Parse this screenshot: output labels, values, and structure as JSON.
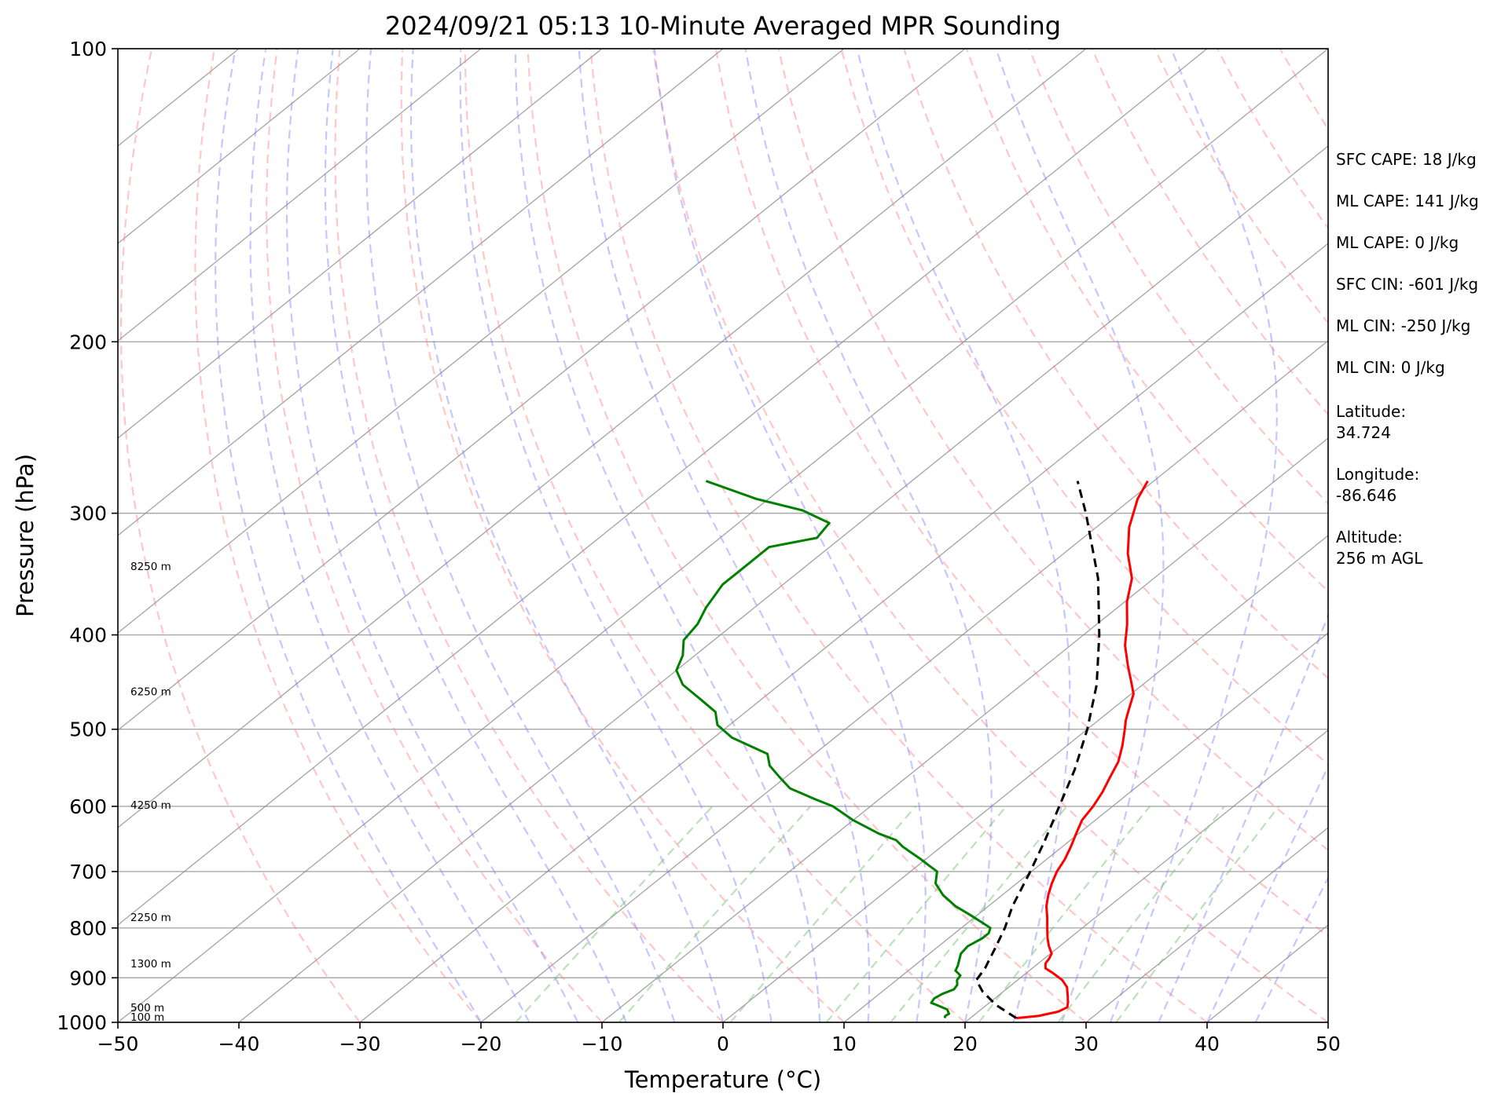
{
  "chart_data": {
    "type": "line",
    "chart_kind": "skew-T log-P sounding",
    "title": "2024/09/21 05:13 10-Minute Averaged MPR Sounding",
    "xlabel": "Temperature (°C)",
    "ylabel": "Pressure (hPa)",
    "xlim": [
      -50,
      50
    ],
    "ylim": [
      1000,
      100
    ],
    "y_scale": "log",
    "x_ticks": [
      -50,
      -40,
      -30,
      -20,
      -10,
      0,
      10,
      20,
      30,
      40,
      50
    ],
    "x_tick_labels": [
      "−50",
      "−40",
      "−30",
      "−20",
      "−10",
      "0",
      "10",
      "20",
      "30",
      "40",
      "50"
    ],
    "y_ticks": [
      1000,
      900,
      800,
      700,
      600,
      500,
      400,
      300,
      200,
      100
    ],
    "y_tick_labels": [
      "1000",
      "900",
      "800",
      "700",
      "600",
      "500",
      "400",
      "300",
      "200",
      "100"
    ],
    "grid": true,
    "skew_slope_per_decade": 100,
    "series": [
      {
        "role": "temperature",
        "color": "#ff0000",
        "style": "solid",
        "points": [
          [
            990,
            23.8
          ],
          [
            985,
            25.4
          ],
          [
            975,
            26.6
          ],
          [
            965,
            26.9
          ],
          [
            955,
            26.5
          ],
          [
            940,
            25.8
          ],
          [
            920,
            24.8
          ],
          [
            905,
            23.7
          ],
          [
            890,
            22.2
          ],
          [
            880,
            21.1
          ],
          [
            870,
            20.6
          ],
          [
            860,
            20.4
          ],
          [
            850,
            20.1
          ],
          [
            835,
            19.1
          ],
          [
            820,
            18.2
          ],
          [
            800,
            17.1
          ],
          [
            780,
            16.0
          ],
          [
            760,
            14.8
          ],
          [
            740,
            13.8
          ],
          [
            720,
            12.9
          ],
          [
            700,
            12.1
          ],
          [
            680,
            11.5
          ],
          [
            660,
            10.7
          ],
          [
            640,
            9.8
          ],
          [
            620,
            8.9
          ],
          [
            600,
            8.4
          ],
          [
            580,
            7.7
          ],
          [
            560,
            6.8
          ],
          [
            540,
            5.9
          ],
          [
            520,
            4.6
          ],
          [
            500,
            3.1
          ],
          [
            490,
            2.3
          ],
          [
            480,
            1.6
          ],
          [
            460,
            0.2
          ],
          [
            450,
            -0.9
          ],
          [
            430,
            -3.2
          ],
          [
            410,
            -5.5
          ],
          [
            390,
            -7.5
          ],
          [
            370,
            -9.8
          ],
          [
            350,
            -11.8
          ],
          [
            330,
            -14.7
          ],
          [
            310,
            -17.3
          ],
          [
            298,
            -18.6
          ],
          [
            290,
            -19.5
          ],
          [
            278,
            -20.5
          ]
        ]
      },
      {
        "role": "dewpoint",
        "color": "#008000",
        "style": "solid",
        "points": [
          [
            990,
            17.9
          ],
          [
            985,
            17.7
          ],
          [
            980,
            17.8
          ],
          [
            970,
            17.2
          ],
          [
            960,
            15.9
          ],
          [
            955,
            15.2
          ],
          [
            945,
            15.0
          ],
          [
            935,
            15.2
          ],
          [
            925,
            15.7
          ],
          [
            915,
            15.5
          ],
          [
            905,
            15.0
          ],
          [
            895,
            14.8
          ],
          [
            885,
            13.9
          ],
          [
            875,
            13.6
          ],
          [
            865,
            13.2
          ],
          [
            850,
            12.6
          ],
          [
            835,
            12.4
          ],
          [
            820,
            12.8
          ],
          [
            810,
            12.8
          ],
          [
            800,
            12.4
          ],
          [
            790,
            11.2
          ],
          [
            775,
            9.3
          ],
          [
            760,
            7.3
          ],
          [
            740,
            5.1
          ],
          [
            720,
            3.3
          ],
          [
            700,
            2.2
          ],
          [
            690,
            0.9
          ],
          [
            680,
            -0.4
          ],
          [
            670,
            -1.8
          ],
          [
            660,
            -3.2
          ],
          [
            650,
            -4.4
          ],
          [
            640,
            -6.5
          ],
          [
            620,
            -10.0
          ],
          [
            600,
            -13.1
          ],
          [
            590,
            -15.3
          ],
          [
            575,
            -18.5
          ],
          [
            560,
            -20.5
          ],
          [
            545,
            -22.5
          ],
          [
            530,
            -23.9
          ],
          [
            510,
            -28.5
          ],
          [
            495,
            -31.0
          ],
          [
            480,
            -32.5
          ],
          [
            466,
            -35.0
          ],
          [
            450,
            -38.0
          ],
          [
            435,
            -40.0
          ],
          [
            420,
            -41.0
          ],
          [
            405,
            -42.5
          ],
          [
            390,
            -43.0
          ],
          [
            375,
            -44.0
          ],
          [
            355,
            -45.0
          ],
          [
            345,
            -45.0
          ],
          [
            335,
            -45.0
          ],
          [
            325,
            -45.0
          ],
          [
            318,
            -42.0
          ],
          [
            307,
            -42.5
          ],
          [
            298,
            -46.0
          ],
          [
            290,
            -51.0
          ],
          [
            278,
            -57.0
          ]
        ]
      },
      {
        "role": "parcel",
        "color": "#000000",
        "style": "dashed",
        "points": [
          [
            990,
            23.8
          ],
          [
            960,
            20.8
          ],
          [
            930,
            18.3
          ],
          [
            905,
            16.6
          ],
          [
            880,
            16.1
          ],
          [
            860,
            15.5
          ],
          [
            840,
            14.9
          ],
          [
            800,
            13.6
          ],
          [
            760,
            12.0
          ],
          [
            700,
            9.9
          ],
          [
            650,
            7.9
          ],
          [
            600,
            5.6
          ],
          [
            550,
            3.1
          ],
          [
            500,
            0.0
          ],
          [
            450,
            -3.8
          ],
          [
            400,
            -8.7
          ],
          [
            350,
            -14.6
          ],
          [
            300,
            -22.3
          ],
          [
            278,
            -26.3
          ]
        ]
      }
    ],
    "background_lines": [
      {
        "kind": "dry adiabats",
        "color": "#ff8080",
        "style": "dashed"
      },
      {
        "kind": "moist adiabats",
        "color": "#8080ff",
        "style": "dashed"
      },
      {
        "kind": "mixing ratio lines",
        "color": "#77c277",
        "style": "dashed"
      },
      {
        "kind": "skewed isotherms",
        "color": "#8c8c8c",
        "style": "solid"
      },
      {
        "kind": "isobars",
        "color": "#8c8c8c",
        "style": "solid"
      }
    ],
    "height_labels": [
      {
        "pressure": 1000,
        "text": "100 m"
      },
      {
        "pressure": 965,
        "text": "500 m"
      },
      {
        "pressure": 870,
        "text": "1300 m"
      },
      {
        "pressure": 780,
        "text": "2250 m"
      },
      {
        "pressure": 598,
        "text": "4250 m"
      },
      {
        "pressure": 457,
        "text": "6250 m"
      },
      {
        "pressure": 340,
        "text": "8250 m"
      }
    ],
    "annotations": [
      "SFC CAPE: 18 J/kg",
      "ML CAPE: 141 J/kg",
      "ML CAPE: 0 J/kg",
      "SFC CIN: -601 J/kg",
      "ML CIN: -250 J/kg",
      "ML CIN: 0 J/kg",
      "Latitude:",
      "34.724",
      "Longitude:",
      "-86.646",
      "Altitude:",
      "256 m AGL"
    ]
  }
}
